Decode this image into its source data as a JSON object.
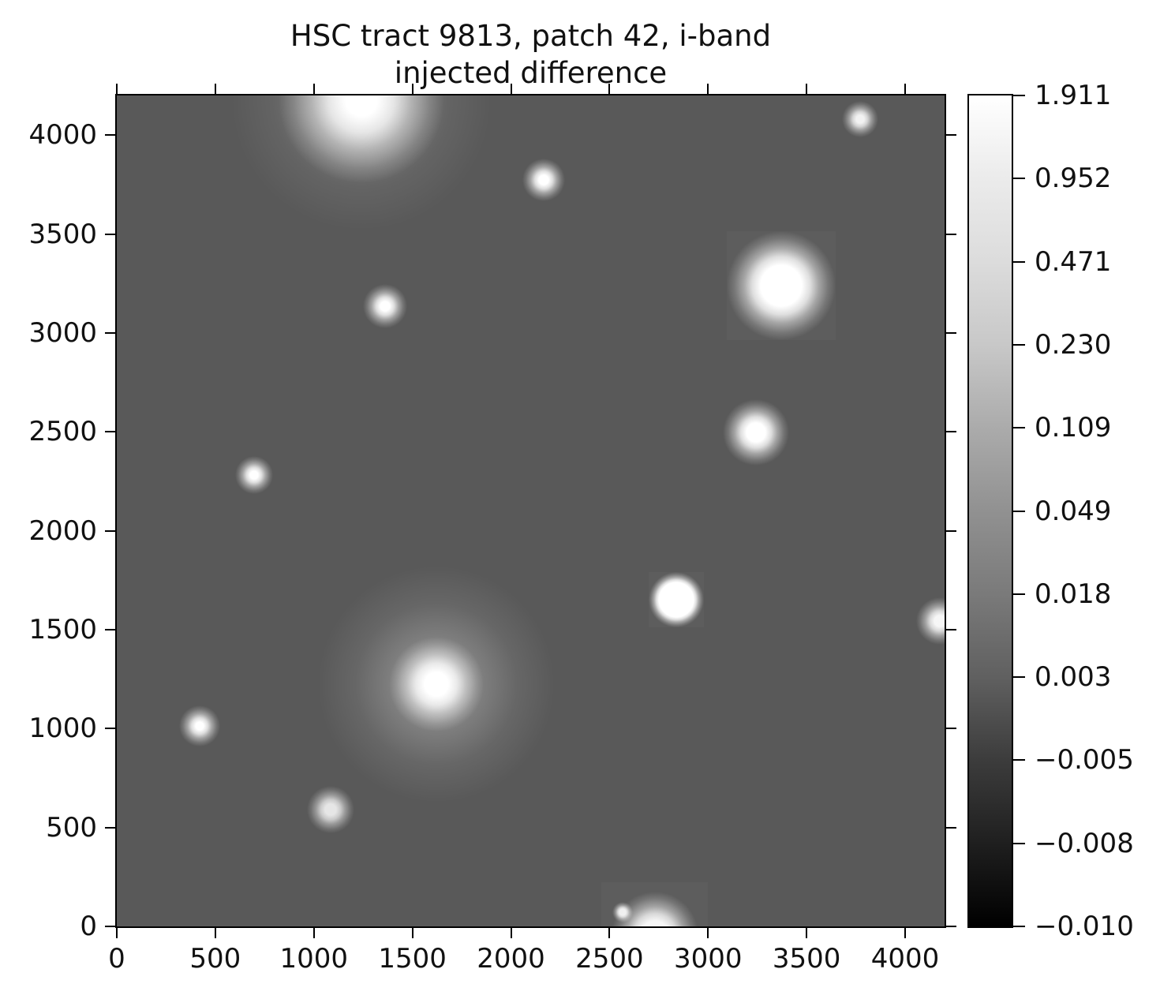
{
  "title": {
    "line1": "HSC tract 9813, patch 42, i-band",
    "line2": "injected difference"
  },
  "axes": {
    "x_ticks": [
      0,
      500,
      1000,
      1500,
      2000,
      2500,
      3000,
      3500,
      4000
    ],
    "y_ticks": [
      0,
      500,
      1000,
      1500,
      2000,
      2500,
      3000,
      3500,
      4000
    ],
    "x_max": 4200,
    "y_max": 4200
  },
  "colorbar": {
    "tick_labels": [
      "1.911",
      "0.952",
      "0.471",
      "0.230",
      "0.109",
      "0.049",
      "0.018",
      "0.003",
      "−0.005",
      "−0.008",
      "−0.010"
    ],
    "gradient": [
      "#ffffff",
      "#ebebeb",
      "#dcdcdc",
      "#c8c8c8",
      "#ababab",
      "#919191",
      "#7a7a7a",
      "#606060",
      "#3c3c3c",
      "#1f1f1f",
      "#000000"
    ]
  },
  "image": {
    "background": "#595959",
    "stamp_background": "#5d5d5d"
  },
  "chart_data": {
    "type": "heatmap",
    "title": "HSC tract 9813, patch 42, i-band injected difference",
    "xlabel": "",
    "ylabel": "",
    "x_range": [
      0,
      4200
    ],
    "y_range": [
      0,
      4200
    ],
    "colorbar_ticks": [
      1.911,
      0.952,
      0.471,
      0.23,
      0.109,
      0.049,
      0.018,
      0.003,
      -0.005,
      -0.008,
      -0.01
    ],
    "colorbar_scale": "asinh",
    "background_value": 0.0,
    "sources": [
      {
        "x": 1240,
        "y": 4175,
        "core_r": 20,
        "glow_r": 105,
        "peak": 1.0,
        "halo_r": 165,
        "halo_peak": 0.35
      },
      {
        "x": 3770,
        "y": 4080,
        "core_r": 5,
        "glow_r": 23,
        "peak": 0.92
      },
      {
        "x": 2165,
        "y": 3775,
        "core_r": 6,
        "glow_r": 27,
        "peak": 1.0
      },
      {
        "x": 3370,
        "y": 3240,
        "core_r": 26,
        "glow_r": 69,
        "peak": 1.0,
        "stamp": 552
      },
      {
        "x": 1360,
        "y": 3135,
        "core_r": 6,
        "glow_r": 28,
        "peak": 1.0
      },
      {
        "x": 3245,
        "y": 2495,
        "core_r": 12,
        "glow_r": 42,
        "peak": 1.0
      },
      {
        "x": 695,
        "y": 2280,
        "core_r": 5,
        "glow_r": 24,
        "peak": 1.0
      },
      {
        "x": 2840,
        "y": 1650,
        "core_r": 22,
        "glow_r": 35,
        "peak": 1.0,
        "stamp": 280
      },
      {
        "x": 4175,
        "y": 1545,
        "core_r": 7,
        "glow_r": 30,
        "peak": 0.95
      },
      {
        "x": 1620,
        "y": 1225,
        "core_r": 15,
        "glow_r": 60,
        "peak": 1.0,
        "halo_r": 150,
        "halo_peak": 0.45
      },
      {
        "x": 420,
        "y": 1015,
        "core_r": 5,
        "glow_r": 26,
        "peak": 1.0
      },
      {
        "x": 1085,
        "y": 590,
        "core_r": 7,
        "glow_r": 30,
        "peak": 0.85
      },
      {
        "x": 2730,
        "y": -45,
        "core_r": 18,
        "glow_r": 55,
        "peak": 0.95,
        "stamp": 540
      },
      {
        "x": 2565,
        "y": 70,
        "core_r": 4,
        "glow_r": 13,
        "peak": 0.9
      }
    ]
  }
}
